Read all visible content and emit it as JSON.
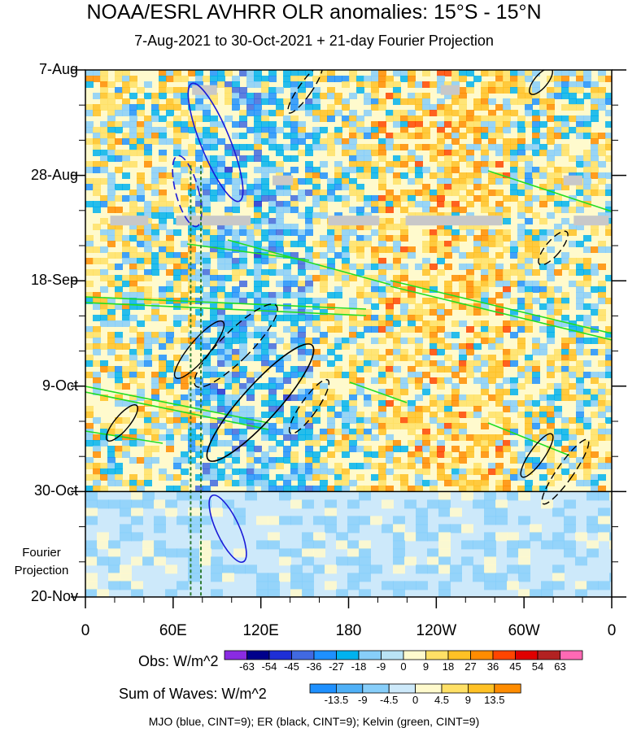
{
  "header": {
    "title": "NOAA/ESRL AVHRR OLR anomalies: 15°S - 15°N",
    "subtitle": "7-Aug-2021 to 30-Oct-2021 + 21-day Fourier Projection"
  },
  "chart_data": {
    "type": "heatmap",
    "x_axis": {
      "quantity": "longitude (degrees east)",
      "range": [
        0,
        360
      ],
      "ticks": [
        {
          "lon": 0,
          "label": "0"
        },
        {
          "lon": 60,
          "label": "60E"
        },
        {
          "lon": 120,
          "label": "120E"
        },
        {
          "lon": 180,
          "label": "180"
        },
        {
          "lon": 240,
          "label": "120W"
        },
        {
          "lon": 300,
          "label": "60W"
        },
        {
          "lon": 360,
          "label": "0"
        }
      ]
    },
    "y_axis": {
      "quantity": "date",
      "range": [
        "2021-08-07",
        "2021-11-20"
      ],
      "ticks": [
        {
          "date": "2021-08-07",
          "label": "7-Aug"
        },
        {
          "date": "2021-08-28",
          "label": "28-Aug"
        },
        {
          "date": "2021-09-18",
          "label": "18-Sep"
        },
        {
          "date": "2021-10-09",
          "label": "9-Oct"
        },
        {
          "date": "2021-10-30",
          "label": "30-Oct"
        },
        {
          "date": "2021-11-20",
          "label": "20-Nov"
        }
      ]
    },
    "projection_start": "2021-10-30",
    "projection_label": "Fourier Projection",
    "reference_lines_lon": [
      72,
      79
    ],
    "obs_colorbar": {
      "label": "Obs: W/m^2",
      "levels": [
        "-63",
        "-54",
        "-45",
        "-36",
        "-27",
        "-18",
        "-9",
        "0",
        "9",
        "18",
        "27",
        "36",
        "45",
        "54",
        "63"
      ],
      "colors": [
        "#8a2be2",
        "#00008b",
        "#1e2fd6",
        "#4169e1",
        "#1e90ff",
        "#00b2ee",
        "#87cefa",
        "#b9e3f5",
        "#fffacd",
        "#ffe066",
        "#ffc125",
        "#ff8c00",
        "#ff4500",
        "#e00000",
        "#b22222",
        "#ff69b4"
      ]
    },
    "waves_colorbar": {
      "label": "Sum of Waves: W/m^2",
      "levels": [
        "-13.5",
        "-9",
        "-4.5",
        "0",
        "4.5",
        "9",
        "13.5"
      ],
      "colors": [
        "#1e90ff",
        "#4fb0f7",
        "#87cefa",
        "#cde9fa",
        "#fffacd",
        "#ffe066",
        "#ffc125",
        "#ff8c00"
      ]
    },
    "missing_segments": [
      {
        "date": "2021-08-11",
        "lon0": 73,
        "lon1": 90
      },
      {
        "date": "2021-08-11",
        "lon0": 243,
        "lon1": 256
      },
      {
        "date": "2021-08-29",
        "lon0": 128,
        "lon1": 142
      },
      {
        "date": "2021-08-29",
        "lon0": 327,
        "lon1": 340
      },
      {
        "date": "2021-09-06",
        "lon0": 17,
        "lon1": 43
      },
      {
        "date": "2021-09-06",
        "lon0": 62,
        "lon1": 113
      },
      {
        "date": "2021-09-06",
        "lon0": 166,
        "lon1": 201
      },
      {
        "date": "2021-09-06",
        "lon0": 219,
        "lon1": 285
      },
      {
        "date": "2021-09-06",
        "lon0": 334,
        "lon1": 358
      }
    ]
  },
  "footnote": "MJO (blue, CINT=9); ER (black, CINT=9); Kelvin (green, CINT=9)"
}
